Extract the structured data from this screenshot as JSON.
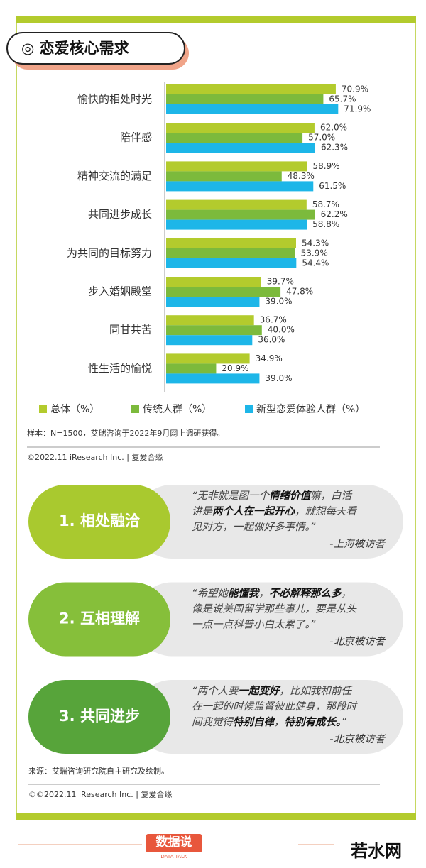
{
  "chart_data": {
    "type": "hbar",
    "title": "◎ 恋爱核心需求",
    "categories": [
      "愉快的相处时光",
      "陪伴感",
      "精神交流的满足",
      "共同进步成长",
      "为共同的目标努力",
      "步入婚姻殿堂",
      "同甘共苦",
      "性生活的愉悦"
    ],
    "series": [
      {
        "name": "总体（%）",
        "color": "#b3cb2d",
        "values": [
          70.9,
          62.0,
          58.9,
          58.7,
          54.3,
          39.7,
          36.7,
          34.9
        ],
        "value_labels": [
          "70.9%",
          "62.0%",
          "58.9%",
          "58.7%",
          "54.3%",
          "39.7%",
          "36.7%",
          "34.9%"
        ]
      },
      {
        "name": "传统人群（%）",
        "color": "#7cba3c",
        "values": [
          65.7,
          57.0,
          48.3,
          62.2,
          53.9,
          47.8,
          40.0,
          20.9
        ],
        "value_labels": [
          "65.7%",
          "57.0%",
          "48.3%",
          "62.2%",
          "53.9%",
          "47.8%",
          "40.0%",
          "20.9%"
        ]
      },
      {
        "name": "新型恋爱体验人群（%）",
        "color": "#1db6e8",
        "values": [
          71.9,
          62.3,
          61.5,
          58.8,
          54.4,
          39.0,
          36.0,
          39.0
        ],
        "value_labels": [
          "71.9%",
          "62.3%",
          "61.5%",
          "58.8%",
          "54.4%",
          "39.0%",
          "36.0%",
          "39.0%"
        ]
      }
    ],
    "xlim": [
      0,
      100
    ],
    "note": "样本：N=1500，艾瑞咨询于2022年9月网上调研获得。",
    "copyright": "©2022.11 iResearch Inc. | 复爱合缘"
  },
  "cards": [
    {
      "label": "1. 相处融洽",
      "color": "#a9c92f",
      "lines": [
        [
          {
            "text": "“无非就是图一个",
            "bold": false
          },
          {
            "text": "情绪价值",
            "bold": true
          },
          {
            "text": "嘛，白话",
            "bold": false
          }
        ],
        [
          {
            "text": "讲是",
            "bold": false
          },
          {
            "text": "两个人在一起开心",
            "bold": true
          },
          {
            "text": "，就想每天看",
            "bold": false
          }
        ],
        [
          {
            "text": "见对方，一起做好多事情。”",
            "bold": false
          }
        ]
      ],
      "source": "-上海被访者"
    },
    {
      "label": "2. 互相理解",
      "color": "#86bf3a",
      "lines": [
        [
          {
            "text": "“希望她",
            "bold": false
          },
          {
            "text": "能懂我",
            "bold": true
          },
          {
            "text": "，",
            "bold": false
          },
          {
            "text": "不必解释那么多",
            "bold": true
          },
          {
            "text": "，",
            "bold": false
          }
        ],
        [
          {
            "text": "像是说美国留学那些事儿，要是从头",
            "bold": false
          }
        ],
        [
          {
            "text": "一点一点科普小白太累了。”",
            "bold": false
          }
        ]
      ],
      "source": "-北京被访者"
    },
    {
      "label": "3. 共同进步",
      "color": "#57a43a",
      "lines": [
        [
          {
            "text": "“两个人要",
            "bold": false
          },
          {
            "text": "一起变好",
            "bold": true
          },
          {
            "text": "，比如我和前任",
            "bold": false
          }
        ],
        [
          {
            "text": "在一起的时候监督彼此健身，那段时",
            "bold": false
          }
        ],
        [
          {
            "text": "间我觉得",
            "bold": false
          },
          {
            "text": "特别自律",
            "bold": true
          },
          {
            "text": "，",
            "bold": false
          },
          {
            "text": "特别有成长。",
            "bold": true
          },
          {
            "text": "”",
            "bold": false
          }
        ]
      ],
      "source": "-北京被访者"
    }
  ],
  "source_note": "来源：艾瑞咨询研究院自主研究及绘制。",
  "copyright2": "©©2022.11 iResearch Inc. | 复爱合缘",
  "footer": {
    "logo": "数据说",
    "logo_sub": "DATA TALK",
    "brand": "若水网"
  }
}
